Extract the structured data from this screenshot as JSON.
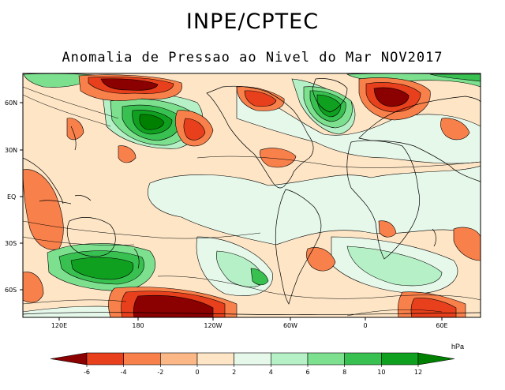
{
  "title": "INPE/CPTEC",
  "subtitle": "Anomalia de Pressao ao Nivel do Mar NOV2017",
  "map": {
    "type": "contour-anomaly-map",
    "lat_ticks": [
      "60N",
      "30N",
      "EQ",
      "30S",
      "60S"
    ],
    "lon_ticks": [
      "120E",
      "180",
      "120W",
      "60W",
      "0",
      "60E"
    ],
    "colorbar": {
      "unit": "hPa",
      "ticks": [
        "-6",
        "-4",
        "-2",
        "0",
        "2",
        "4",
        "6",
        "8",
        "10",
        "12"
      ],
      "colors": [
        "#8b0000",
        "#e8401c",
        "#f8804a",
        "#fbb886",
        "#fde5c6",
        "#e6f8ea",
        "#b6f0c6",
        "#7ce08e",
        "#38c050",
        "#10a020",
        "#008000"
      ]
    }
  }
}
